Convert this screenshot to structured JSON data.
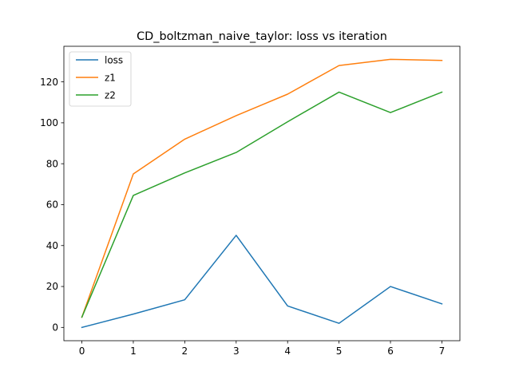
{
  "chart_data": {
    "type": "line",
    "title": "CD_boltzman_naive_taylor: loss vs iteration",
    "xlabel": "",
    "ylabel": "",
    "x": [
      0,
      1,
      2,
      3,
      4,
      5,
      6,
      7
    ],
    "xlim": [
      -0.35,
      7.35
    ],
    "ylim": [
      -6.5,
      137.4
    ],
    "xticks": [
      0,
      1,
      2,
      3,
      4,
      5,
      6,
      7
    ],
    "yticks": [
      0,
      20,
      40,
      60,
      80,
      100,
      120
    ],
    "grid": false,
    "legend_position": "top-left",
    "series": [
      {
        "name": "loss",
        "color": "#1f77b4",
        "values": [
          0,
          6.5,
          13.5,
          45,
          10.5,
          2,
          20,
          11.5
        ]
      },
      {
        "name": "z1",
        "color": "#ff7f0e",
        "values": [
          5,
          75,
          92,
          103.5,
          114,
          128,
          131,
          130.5
        ]
      },
      {
        "name": "z2",
        "color": "#2ca02c",
        "values": [
          5,
          64.5,
          75.5,
          85.5,
          100.5,
          115,
          105,
          115
        ]
      }
    ]
  }
}
